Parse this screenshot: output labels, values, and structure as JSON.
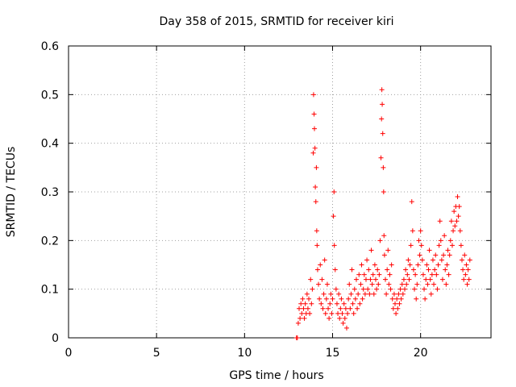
{
  "chart_data": {
    "type": "scatter",
    "title": "Day 358 of 2015, SRMTID for receiver kiri",
    "xlabel": "GPS time / hours",
    "ylabel": "SRMTID / TECUs",
    "xlim": [
      0,
      24
    ],
    "ylim": [
      0,
      0.6
    ],
    "xticks": [
      0,
      5,
      10,
      15,
      20
    ],
    "xtick_labels": [
      "0",
      "5",
      "10",
      "15",
      "20"
    ],
    "yticks": [
      0,
      0.1,
      0.2,
      0.3,
      0.4,
      0.5,
      0.6
    ],
    "ytick_labels": [
      "0",
      "0.1",
      "0.2",
      "0.3",
      "0.4",
      "0.5",
      "0.6"
    ],
    "grid": true,
    "marker": "+",
    "color": "#ff0000",
    "series": [
      {
        "name": "SRMTID",
        "points": [
          [
            12.95,
            0.0
          ],
          [
            13.0,
            0.0
          ],
          [
            13.05,
            0.03
          ],
          [
            13.1,
            0.06
          ],
          [
            13.15,
            0.04
          ],
          [
            13.2,
            0.07
          ],
          [
            13.25,
            0.05
          ],
          [
            13.3,
            0.08
          ],
          [
            13.35,
            0.06
          ],
          [
            13.4,
            0.04
          ],
          [
            13.45,
            0.07
          ],
          [
            13.5,
            0.05
          ],
          [
            13.55,
            0.09
          ],
          [
            13.6,
            0.06
          ],
          [
            13.65,
            0.08
          ],
          [
            13.7,
            0.05
          ],
          [
            13.75,
            0.12
          ],
          [
            13.8,
            0.07
          ],
          [
            13.85,
            0.1
          ],
          [
            13.9,
            0.38
          ],
          [
            13.92,
            0.5
          ],
          [
            13.95,
            0.46
          ],
          [
            13.97,
            0.43
          ],
          [
            14.0,
            0.39
          ],
          [
            14.02,
            0.31
          ],
          [
            14.05,
            0.28
          ],
          [
            14.08,
            0.35
          ],
          [
            14.1,
            0.22
          ],
          [
            14.12,
            0.19
          ],
          [
            14.15,
            0.14
          ],
          [
            14.2,
            0.11
          ],
          [
            14.25,
            0.08
          ],
          [
            14.3,
            0.15
          ],
          [
            14.35,
            0.07
          ],
          [
            14.4,
            0.12
          ],
          [
            14.45,
            0.06
          ],
          [
            14.5,
            0.09
          ],
          [
            14.55,
            0.16
          ],
          [
            14.6,
            0.05
          ],
          [
            14.65,
            0.08
          ],
          [
            14.7,
            0.11
          ],
          [
            14.75,
            0.06
          ],
          [
            14.8,
            0.04
          ],
          [
            14.85,
            0.07
          ],
          [
            14.9,
            0.09
          ],
          [
            14.95,
            0.05
          ],
          [
            15.0,
            0.08
          ],
          [
            15.05,
            0.25
          ],
          [
            15.08,
            0.3
          ],
          [
            15.1,
            0.19
          ],
          [
            15.15,
            0.14
          ],
          [
            15.2,
            0.1
          ],
          [
            15.25,
            0.07
          ],
          [
            15.3,
            0.05
          ],
          [
            15.35,
            0.09
          ],
          [
            15.4,
            0.04
          ],
          [
            15.45,
            0.06
          ],
          [
            15.5,
            0.08
          ],
          [
            15.55,
            0.05
          ],
          [
            15.6,
            0.03
          ],
          [
            15.65,
            0.07
          ],
          [
            15.7,
            0.04
          ],
          [
            15.75,
            0.06
          ],
          [
            15.8,
            0.02
          ],
          [
            15.85,
            0.05
          ],
          [
            15.9,
            0.08
          ],
          [
            15.95,
            0.11
          ],
          [
            16.0,
            0.06
          ],
          [
            16.05,
            0.09
          ],
          [
            16.1,
            0.14
          ],
          [
            16.15,
            0.07
          ],
          [
            16.2,
            0.05
          ],
          [
            16.25,
            0.1
          ],
          [
            16.3,
            0.08
          ],
          [
            16.35,
            0.12
          ],
          [
            16.4,
            0.06
          ],
          [
            16.45,
            0.09
          ],
          [
            16.5,
            0.13
          ],
          [
            16.55,
            0.07
          ],
          [
            16.6,
            0.11
          ],
          [
            16.65,
            0.15
          ],
          [
            16.7,
            0.08
          ],
          [
            16.75,
            0.1
          ],
          [
            16.8,
            0.13
          ],
          [
            16.85,
            0.09
          ],
          [
            16.9,
            0.12
          ],
          [
            16.95,
            0.16
          ],
          [
            17.0,
            0.1
          ],
          [
            17.05,
            0.14
          ],
          [
            17.1,
            0.09
          ],
          [
            17.15,
            0.12
          ],
          [
            17.2,
            0.18
          ],
          [
            17.25,
            0.11
          ],
          [
            17.3,
            0.13
          ],
          [
            17.35,
            0.09
          ],
          [
            17.4,
            0.15
          ],
          [
            17.45,
            0.12
          ],
          [
            17.5,
            0.1
          ],
          [
            17.55,
            0.14
          ],
          [
            17.6,
            0.11
          ],
          [
            17.65,
            0.13
          ],
          [
            17.7,
            0.2
          ],
          [
            17.75,
            0.37
          ],
          [
            17.78,
            0.45
          ],
          [
            17.8,
            0.51
          ],
          [
            17.82,
            0.48
          ],
          [
            17.85,
            0.42
          ],
          [
            17.88,
            0.35
          ],
          [
            17.9,
            0.3
          ],
          [
            17.92,
            0.21
          ],
          [
            17.95,
            0.17
          ],
          [
            18.0,
            0.12
          ],
          [
            18.05,
            0.09
          ],
          [
            18.1,
            0.14
          ],
          [
            18.15,
            0.18
          ],
          [
            18.2,
            0.11
          ],
          [
            18.25,
            0.13
          ],
          [
            18.3,
            0.1
          ],
          [
            18.35,
            0.15
          ],
          [
            18.4,
            0.08
          ],
          [
            18.45,
            0.06
          ],
          [
            18.5,
            0.09
          ],
          [
            18.55,
            0.07
          ],
          [
            18.6,
            0.05
          ],
          [
            18.65,
            0.08
          ],
          [
            18.7,
            0.06
          ],
          [
            18.75,
            0.09
          ],
          [
            18.8,
            0.07
          ],
          [
            18.85,
            0.1
          ],
          [
            18.9,
            0.08
          ],
          [
            18.95,
            0.11
          ],
          [
            19.0,
            0.09
          ],
          [
            19.05,
            0.12
          ],
          [
            19.1,
            0.1
          ],
          [
            19.15,
            0.14
          ],
          [
            19.2,
            0.11
          ],
          [
            19.25,
            0.13
          ],
          [
            19.3,
            0.16
          ],
          [
            19.35,
            0.12
          ],
          [
            19.4,
            0.15
          ],
          [
            19.45,
            0.19
          ],
          [
            19.5,
            0.28
          ],
          [
            19.55,
            0.22
          ],
          [
            19.6,
            0.14
          ],
          [
            19.65,
            0.1
          ],
          [
            19.7,
            0.13
          ],
          [
            19.75,
            0.08
          ],
          [
            19.8,
            0.11
          ],
          [
            19.85,
            0.15
          ],
          [
            19.9,
            0.2
          ],
          [
            19.95,
            0.17
          ],
          [
            20.0,
            0.22
          ],
          [
            20.05,
            0.19
          ],
          [
            20.1,
            0.16
          ],
          [
            20.15,
            0.13
          ],
          [
            20.2,
            0.1
          ],
          [
            20.25,
            0.08
          ],
          [
            20.3,
            0.12
          ],
          [
            20.35,
            0.15
          ],
          [
            20.4,
            0.11
          ],
          [
            20.45,
            0.14
          ],
          [
            20.5,
            0.18
          ],
          [
            20.55,
            0.12
          ],
          [
            20.6,
            0.09
          ],
          [
            20.65,
            0.13
          ],
          [
            20.7,
            0.16
          ],
          [
            20.75,
            0.11
          ],
          [
            20.8,
            0.14
          ],
          [
            20.85,
            0.17
          ],
          [
            20.9,
            0.13
          ],
          [
            20.95,
            0.1
          ],
          [
            21.0,
            0.15
          ],
          [
            21.05,
            0.19
          ],
          [
            21.1,
            0.24
          ],
          [
            21.15,
            0.2
          ],
          [
            21.2,
            0.16
          ],
          [
            21.25,
            0.12
          ],
          [
            21.3,
            0.17
          ],
          [
            21.35,
            0.21
          ],
          [
            21.4,
            0.14
          ],
          [
            21.45,
            0.11
          ],
          [
            21.5,
            0.15
          ],
          [
            21.55,
            0.18
          ],
          [
            21.6,
            0.13
          ],
          [
            21.65,
            0.17
          ],
          [
            21.7,
            0.2
          ],
          [
            21.75,
            0.24
          ],
          [
            21.8,
            0.19
          ],
          [
            21.85,
            0.22
          ],
          [
            21.9,
            0.26
          ],
          [
            21.95,
            0.23
          ],
          [
            22.0,
            0.27
          ],
          [
            22.05,
            0.24
          ],
          [
            22.1,
            0.29
          ],
          [
            22.15,
            0.25
          ],
          [
            22.2,
            0.27
          ],
          [
            22.25,
            0.22
          ],
          [
            22.3,
            0.19
          ],
          [
            22.35,
            0.16
          ],
          [
            22.4,
            0.14
          ],
          [
            22.45,
            0.12
          ],
          [
            22.5,
            0.17
          ],
          [
            22.55,
            0.13
          ],
          [
            22.6,
            0.15
          ],
          [
            22.65,
            0.11
          ],
          [
            22.7,
            0.14
          ],
          [
            22.75,
            0.12
          ],
          [
            22.8,
            0.16
          ]
        ]
      }
    ]
  }
}
